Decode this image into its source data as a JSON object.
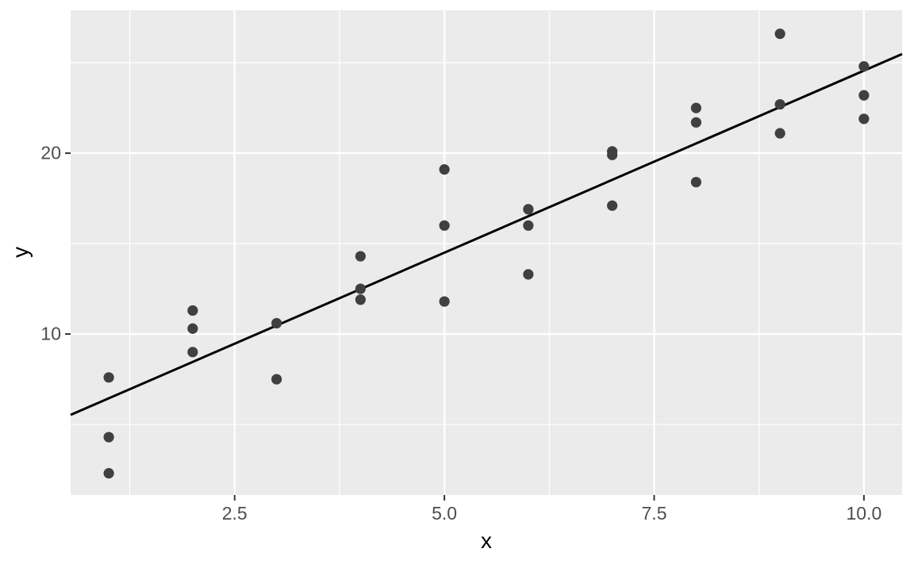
{
  "chart_data": {
    "type": "scatter",
    "title": "",
    "xlabel": "x",
    "ylabel": "y",
    "xlim": [
      0.545,
      10.455
    ],
    "ylim": [
      1.1,
      27.9
    ],
    "x_major_ticks": [
      2.5,
      5.0,
      7.5,
      10.0
    ],
    "x_tick_labels": [
      "2.5",
      "5.0",
      "7.5",
      "10.0"
    ],
    "y_major_ticks": [
      10,
      20
    ],
    "y_tick_labels": [
      "10",
      "20"
    ],
    "x_minor_ticks": [
      1.25,
      3.75,
      6.25,
      8.75
    ],
    "y_minor_ticks": [
      5,
      15,
      25
    ],
    "grid": "on",
    "legend": "none",
    "theme": "ggplot2-grey-panel",
    "points": [
      {
        "x": 1,
        "y": 7.6
      },
      {
        "x": 1,
        "y": 4.3
      },
      {
        "x": 1,
        "y": 2.3
      },
      {
        "x": 2,
        "y": 11.3
      },
      {
        "x": 2,
        "y": 10.3
      },
      {
        "x": 2,
        "y": 9.0
      },
      {
        "x": 3,
        "y": 10.6
      },
      {
        "x": 3,
        "y": 7.5
      },
      {
        "x": 4,
        "y": 14.3
      },
      {
        "x": 4,
        "y": 12.5
      },
      {
        "x": 4,
        "y": 11.9
      },
      {
        "x": 5,
        "y": 19.1
      },
      {
        "x": 5,
        "y": 16.0
      },
      {
        "x": 5,
        "y": 11.8
      },
      {
        "x": 6,
        "y": 16.9
      },
      {
        "x": 6,
        "y": 16.0
      },
      {
        "x": 6,
        "y": 13.3
      },
      {
        "x": 7,
        "y": 20.1
      },
      {
        "x": 7,
        "y": 19.9
      },
      {
        "x": 7,
        "y": 17.1
      },
      {
        "x": 8,
        "y": 22.5
      },
      {
        "x": 8,
        "y": 21.7
      },
      {
        "x": 8,
        "y": 18.4
      },
      {
        "x": 9,
        "y": 26.6
      },
      {
        "x": 9,
        "y": 22.7
      },
      {
        "x": 9,
        "y": 21.1
      },
      {
        "x": 10,
        "y": 24.8
      },
      {
        "x": 10,
        "y": 23.2
      },
      {
        "x": 10,
        "y": 21.9
      }
    ],
    "trend_line": {
      "type": "linear",
      "slope": 2.01,
      "intercept": 4.43,
      "x1": 0.545,
      "y1": 5.53,
      "x2": 10.455,
      "y2": 25.48
    },
    "colors": {
      "panel_background": "#EBEBEB",
      "figure_background": "#FFFFFF",
      "grid_line": "#FFFFFF",
      "point": "#404040",
      "trend_line": "#000000",
      "tick_label": "#4D4D4D",
      "axis_title": "#000000",
      "tick_mark": "#333333"
    }
  }
}
